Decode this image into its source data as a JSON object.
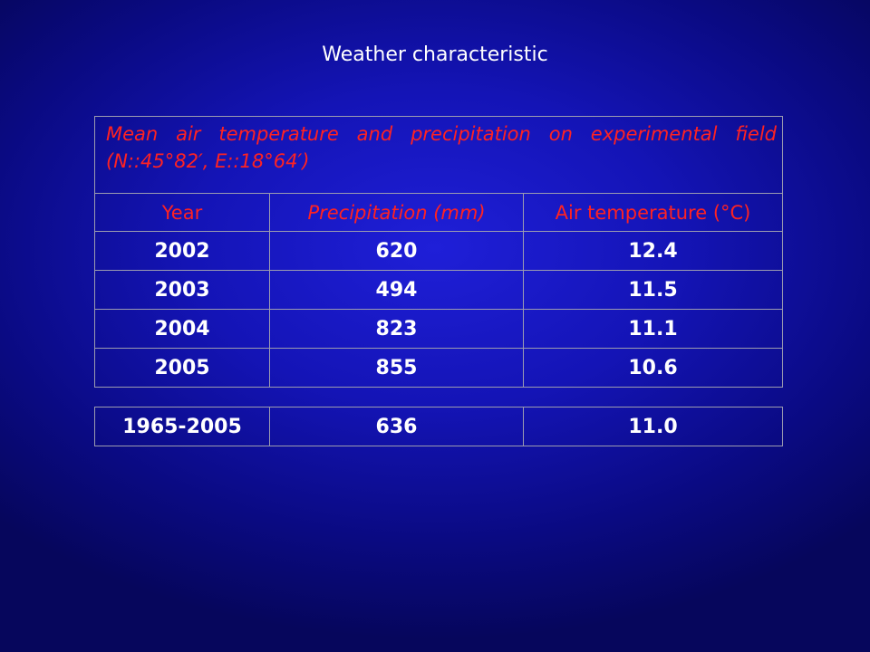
{
  "slide": {
    "title": "Weather characteristic"
  },
  "table": {
    "caption": "Mean air temperature and precipitation on experimental field (N::45°82′, E::18°64′)",
    "headers": [
      "Year",
      "Precipitation (mm)",
      "Air temperature (°C)"
    ],
    "rows": [
      [
        "2002",
        "620",
        "12.4"
      ],
      [
        "2003",
        "494",
        "11.5"
      ],
      [
        "2004",
        "823",
        "11.1"
      ],
      [
        "2005",
        "855",
        "10.6"
      ]
    ]
  },
  "summary": {
    "row": [
      "1965-2005",
      "636",
      "11.0"
    ]
  },
  "colors": {
    "background": "#1414b6",
    "header_text": "#ff2222",
    "data_text": "#ffffff",
    "grid": "#9c9cb0"
  }
}
